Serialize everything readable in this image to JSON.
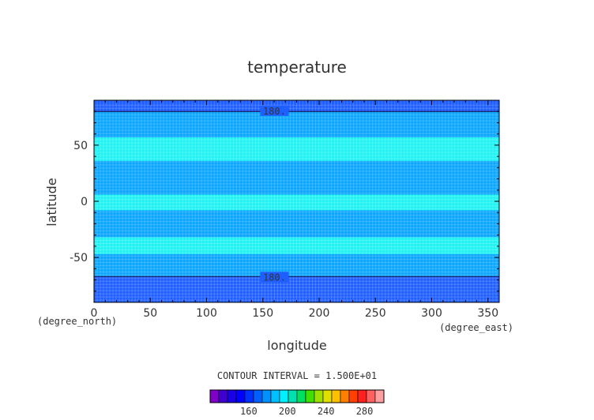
{
  "chart_data": {
    "type": "heatmap",
    "title": "temperature",
    "xlabel": "longitude",
    "ylabel": "latitude",
    "x_units": "(degree_east)",
    "y_units": "(degree_north)",
    "xlim": [
      0,
      360
    ],
    "ylim": [
      -90,
      90
    ],
    "x_ticks": [
      0,
      50,
      100,
      150,
      200,
      250,
      300,
      350
    ],
    "y_ticks": [
      -50,
      0,
      50
    ],
    "contour_interval_label": "CONTOUR INTERVAL = 1.500E+01",
    "contour_labels": [
      {
        "text": "180.",
        "lon": 128,
        "lat": 81
      },
      {
        "text": "180.",
        "lon": 128,
        "lat": -67
      }
    ],
    "bands": [
      {
        "lat_from": -90,
        "lat_to": -67,
        "value": 175
      },
      {
        "lat_from": -67,
        "lat_to": -47,
        "value": 190
      },
      {
        "lat_from": -47,
        "lat_to": -32,
        "value": 205
      },
      {
        "lat_from": -32,
        "lat_to": -8,
        "value": 190
      },
      {
        "lat_from": -8,
        "lat_to": 6,
        "value": 205
      },
      {
        "lat_from": 6,
        "lat_to": 36,
        "value": 190
      },
      {
        "lat_from": 36,
        "lat_to": 57,
        "value": 205
      },
      {
        "lat_from": 57,
        "lat_to": 80,
        "value": 190
      },
      {
        "lat_from": 80,
        "lat_to": 90,
        "value": 175
      }
    ],
    "colorbar": {
      "ticks": [
        160,
        200,
        240,
        280
      ],
      "levels": [
        130,
        140,
        150,
        160,
        170,
        180,
        190,
        200,
        210,
        220,
        230,
        240,
        250,
        260,
        270,
        280,
        290
      ],
      "colors": [
        "#7f00c8",
        "#3f00d0",
        "#1a00e6",
        "#0000ff",
        "#0030ff",
        "#0060ff",
        "#0090ff",
        "#00c0ff",
        "#00f0ff",
        "#00e0b0",
        "#00e060",
        "#40e000",
        "#a0e000",
        "#e0e000",
        "#ffc000",
        "#ff8000",
        "#ff4000",
        "#ff2020",
        "#ff6060",
        "#ffa0a0"
      ]
    },
    "colors": {
      "cold": "#1f5fff",
      "mid": "#0aa6ff",
      "warm": "#1ff2f2"
    }
  }
}
